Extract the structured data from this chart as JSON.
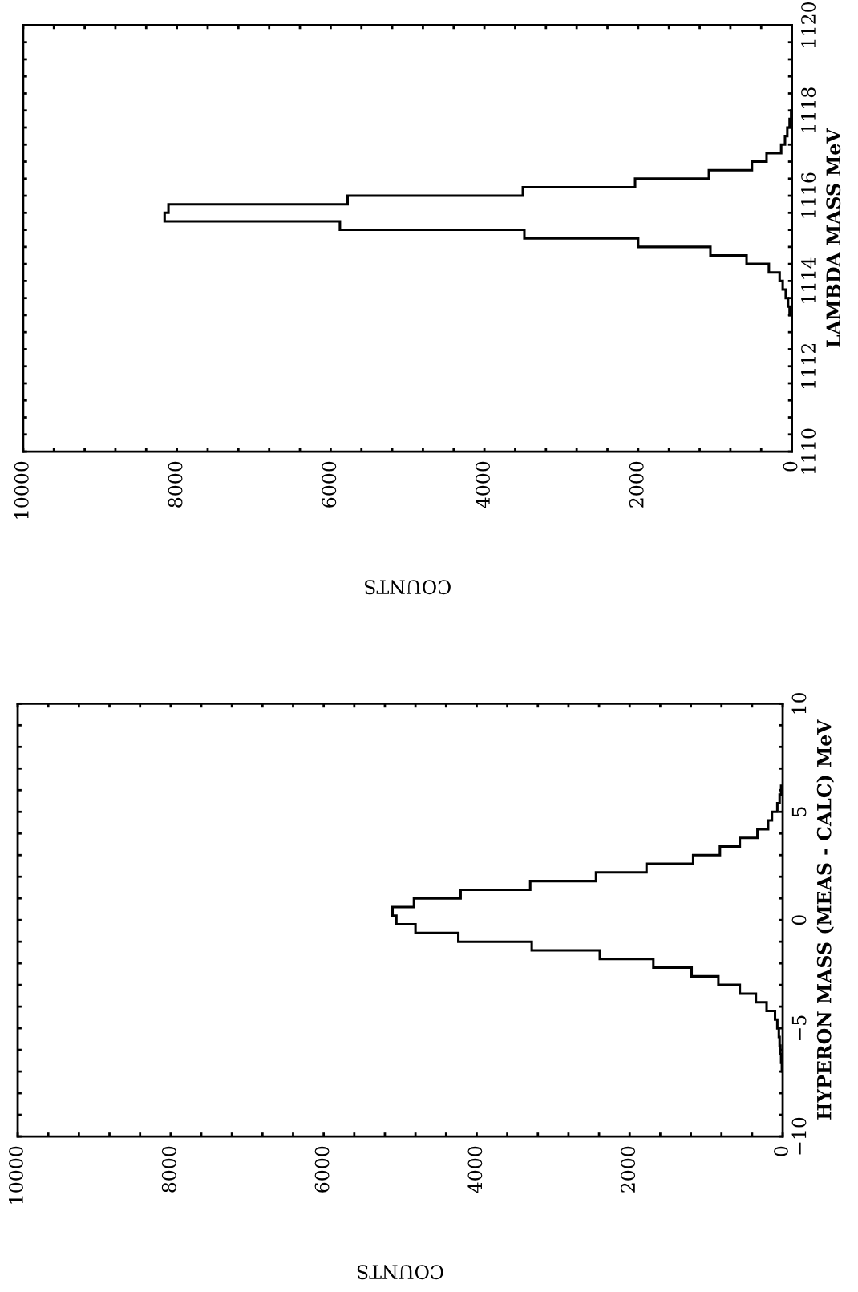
{
  "chart_data": [
    {
      "type": "histogram",
      "orientation": "horizontal",
      "xlabel": "COUNTS",
      "ylabel": "LAMBDA MASS MeV",
      "bins": [
        1113.2,
        1113.4,
        1113.6,
        1113.8,
        1114.0,
        1114.2,
        1114.4,
        1114.6,
        1114.8,
        1115.0,
        1115.2,
        1115.4,
        1115.6,
        1115.8,
        1116.0,
        1116.2,
        1116.4,
        1116.6,
        1116.8,
        1117.0,
        1117.2,
        1117.4,
        1117.6,
        1117.8,
        1118.0
      ],
      "values": [
        30,
        50,
        80,
        120,
        160,
        300,
        590,
        1060,
        2000,
        3480,
        5880,
        8160,
        8110,
        5780,
        3500,
        2040,
        1080,
        520,
        330,
        140,
        90,
        60,
        30,
        10
      ],
      "color": "#000000",
      "xlim": [
        10000,
        0
      ],
      "xticks": [
        0,
        {
          "value": 400,
          "label": null
        },
        {
          "value": 800,
          "label": null
        },
        {
          "value": 1200,
          "label": null
        },
        {
          "value": 1600,
          "label": null
        },
        2000,
        {
          "value": 2400,
          "label": null
        },
        {
          "value": 2800,
          "label": null
        },
        {
          "value": 3200,
          "label": null
        },
        {
          "value": 3600,
          "label": null
        },
        4000,
        {
          "value": 4400,
          "label": null
        },
        {
          "value": 4800,
          "label": null
        },
        {
          "value": 5200,
          "label": null
        },
        {
          "value": 5600,
          "label": null
        },
        6000,
        {
          "value": 6400,
          "label": null
        },
        {
          "value": 6800,
          "label": null
        },
        {
          "value": 7200,
          "label": null
        },
        {
          "value": 7600,
          "label": null
        },
        8000,
        {
          "value": 8400,
          "label": null
        },
        {
          "value": 8800,
          "label": null
        },
        {
          "value": 9200,
          "label": null
        },
        {
          "value": 9600,
          "label": null
        },
        10000
      ],
      "ylim": [
        1110,
        1120
      ],
      "yticks": [
        1110,
        {
          "value": 1110.4,
          "label": null
        },
        {
          "value": 1110.8,
          "label": null
        },
        {
          "value": 1111.2,
          "label": null
        },
        {
          "value": 1111.6,
          "label": null
        },
        1112,
        {
          "value": 1112.4,
          "label": null
        },
        {
          "value": 1112.8,
          "label": null
        },
        {
          "value": 1113.2,
          "label": null
        },
        {
          "value": 1113.6,
          "label": null
        },
        1114,
        {
          "value": 1114.4,
          "label": null
        },
        {
          "value": 1114.8,
          "label": null
        },
        {
          "value": 1115.2,
          "label": null
        },
        {
          "value": 1115.6,
          "label": null
        },
        1116,
        {
          "value": 1116.4,
          "label": null
        },
        {
          "value": 1116.8,
          "label": null
        },
        {
          "value": 1117.2,
          "label": null
        },
        {
          "value": 1117.6,
          "label": null
        },
        1118,
        {
          "value": 1118.4,
          "label": null
        },
        {
          "value": 1118.8,
          "label": null
        },
        {
          "value": 1119.2,
          "label": null
        },
        {
          "value": 1119.6,
          "label": null
        },
        1120
      ]
    },
    {
      "type": "histogram",
      "orientation": "horizontal",
      "xlabel": "COUNTS",
      "ylabel": "HYPERON MASS (MEAS - CALC) MeV",
      "bins": [
        -7.0,
        -6.6,
        -6.2,
        -5.8,
        -5.4,
        -5.0,
        -4.6,
        -4.2,
        -3.8,
        -3.4,
        -3.0,
        -2.6,
        -2.2,
        -1.8,
        -1.4,
        -1.0,
        -0.6,
        -0.2,
        0.2,
        0.6,
        1.0,
        1.4,
        1.8,
        2.2,
        2.6,
        3.0,
        3.4,
        3.8,
        4.2,
        4.6,
        5.0,
        5.4,
        5.8,
        6.2
      ],
      "values": [
        10,
        20,
        30,
        40,
        50,
        70,
        100,
        210,
        350,
        560,
        840,
        1190,
        1690,
        2390,
        3280,
        4240,
        4800,
        5050,
        5100,
        4820,
        4210,
        3300,
        2440,
        1780,
        1170,
        820,
        560,
        330,
        190,
        140,
        70,
        40,
        20
      ],
      "color": "#000000",
      "xlim": [
        10000,
        0
      ],
      "xticks": [
        0,
        {
          "value": 400,
          "label": null
        },
        {
          "value": 800,
          "label": null
        },
        {
          "value": 1200,
          "label": null
        },
        {
          "value": 1600,
          "label": null
        },
        2000,
        {
          "value": 2400,
          "label": null
        },
        {
          "value": 2800,
          "label": null
        },
        {
          "value": 3200,
          "label": null
        },
        {
          "value": 3600,
          "label": null
        },
        4000,
        {
          "value": 4400,
          "label": null
        },
        {
          "value": 4800,
          "label": null
        },
        {
          "value": 5200,
          "label": null
        },
        {
          "value": 5600,
          "label": null
        },
        6000,
        {
          "value": 6400,
          "label": null
        },
        {
          "value": 6800,
          "label": null
        },
        {
          "value": 7200,
          "label": null
        },
        {
          "value": 7600,
          "label": null
        },
        8000,
        {
          "value": 8400,
          "label": null
        },
        {
          "value": 8800,
          "label": null
        },
        {
          "value": 9200,
          "label": null
        },
        {
          "value": 9600,
          "label": null
        },
        10000
      ],
      "ylim": [
        -10,
        10
      ],
      "yticks": [
        {
          "value": -10,
          "label": "−10"
        },
        {
          "value": -9,
          "label": null
        },
        {
          "value": -8,
          "label": null
        },
        {
          "value": -7,
          "label": null
        },
        {
          "value": -6,
          "label": null
        },
        {
          "value": -5,
          "label": "−5"
        },
        {
          "value": -4,
          "label": null
        },
        {
          "value": -3,
          "label": null
        },
        {
          "value": -2,
          "label": null
        },
        {
          "value": -1,
          "label": null
        },
        0,
        {
          "value": 1,
          "label": null
        },
        {
          "value": 2,
          "label": null
        },
        {
          "value": 3,
          "label": null
        },
        {
          "value": 4,
          "label": null
        },
        5,
        {
          "value": 6,
          "label": null
        },
        {
          "value": 7,
          "label": null
        },
        {
          "value": 8,
          "label": null
        },
        {
          "value": 9,
          "label": null
        },
        10
      ]
    }
  ]
}
